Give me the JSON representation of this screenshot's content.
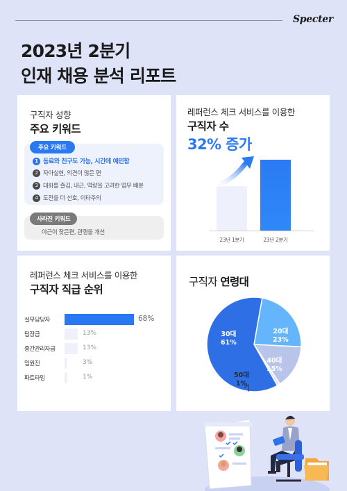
{
  "brand": "Specter",
  "title": {
    "line1": "2023년 2분기",
    "line2": "인재 채용 분석 리포트"
  },
  "keywords_card": {
    "small_title": "구직자 성향",
    "big_title": "주요 키워드",
    "main_label": "주요 키워드",
    "items": [
      {
        "num": "1",
        "text": "동료와 친구도 가능, 시간에 예민함"
      },
      {
        "num": "2",
        "text": "자아실현, 의견이 많은 편"
      },
      {
        "num": "3",
        "text": "대화를 즐김, 내근, 역량을 고려한 업무 배분"
      },
      {
        "num": "4",
        "text": "도전을 더 선호, 이타주의"
      }
    ],
    "gone_label": "사라진 키워드",
    "gone_text": "야근이 잦은편, 관행을 개선"
  },
  "growth_card": {
    "small_title": "레퍼런스 체크 서비스를 이용한",
    "big_title": "구직자 수",
    "highlight": "32% 증가",
    "bar_labels": [
      "23년 1분기",
      "23년 2분기"
    ],
    "accent": "#2979f2"
  },
  "rank_card": {
    "small_title": "레퍼런스 체크 서비스를 이용한",
    "big_title": "구직자 직급 순위",
    "rows": [
      {
        "label": "실무담당자",
        "value": "68%",
        "pct": 68
      },
      {
        "label": "팀장급",
        "value": "13%",
        "pct": 13
      },
      {
        "label": "중간관리자급",
        "value": "13%",
        "pct": 13
      },
      {
        "label": "임원진",
        "value": "3%",
        "pct": 3
      },
      {
        "label": "파트타임",
        "value": "1%",
        "pct": 1
      }
    ]
  },
  "age_card": {
    "title_normal": "구직자",
    "title_bold": "연령대",
    "slices": [
      {
        "name": "30대",
        "value": "61%",
        "pct": 61,
        "color": "#2e6fe6"
      },
      {
        "name": "20대",
        "value": "23%",
        "pct": 23,
        "color": "#64b5fb"
      },
      {
        "name": "40대",
        "value": "15%",
        "pct": 15,
        "color": "#b8c4ea"
      },
      {
        "name": "50대",
        "value": "1%",
        "pct": 1,
        "color": "#dfe3f6"
      }
    ]
  }
}
